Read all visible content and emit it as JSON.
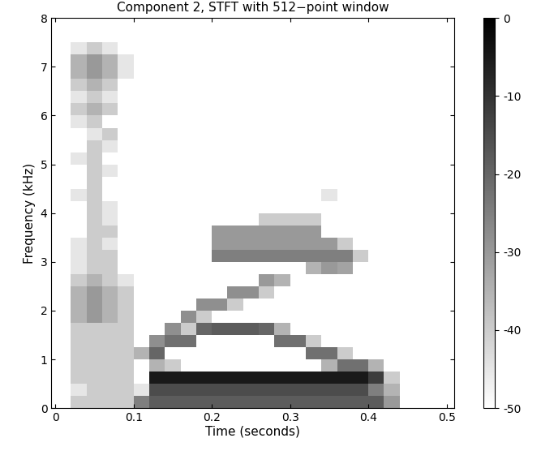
{
  "chart_data": {
    "type": "heatmap",
    "title": "Component 2, STFT with 512−point window",
    "x_label": "Time (seconds)",
    "y_label": "Frequency (kHz)",
    "xlim": [
      -0.005,
      0.51
    ],
    "ylim": [
      0,
      8
    ],
    "xticks": [
      0,
      0.1,
      0.2,
      0.3,
      0.4,
      0.5
    ],
    "yticks": [
      0,
      1,
      2,
      3,
      4,
      5,
      6,
      7,
      8
    ],
    "colorbar_range": [
      -50,
      0
    ],
    "colorbar_ticks": [
      0,
      -10,
      -20,
      -30,
      -40,
      -50
    ],
    "x": [
      0.01,
      0.03,
      0.05,
      0.07,
      0.09,
      0.11,
      0.13,
      0.15,
      0.17,
      0.19,
      0.21,
      0.23,
      0.25,
      0.27,
      0.29,
      0.31,
      0.33,
      0.35,
      0.37,
      0.39,
      0.41,
      0.43,
      0.45,
      0.47,
      0.49
    ],
    "y": [
      0.125,
      0.375,
      0.625,
      0.875,
      1.125,
      1.375,
      1.625,
      1.875,
      2.125,
      2.375,
      2.625,
      2.875,
      3.125,
      3.375,
      3.625,
      3.875,
      4.125,
      4.375,
      4.625,
      4.875,
      5.125,
      5.375,
      5.625,
      5.875,
      6.125,
      6.375,
      6.625,
      6.875,
      7.125,
      7.375,
      7.625,
      7.875
    ],
    "cells": [
      [
        -50,
        -40,
        -40,
        -40,
        -40,
        -25,
        -18,
        -18,
        -18,
        -18,
        -18,
        -18,
        -18,
        -18,
        -18,
        -18,
        -18,
        -18,
        -18,
        -18,
        -18,
        -30,
        -50,
        -50,
        -50
      ],
      [
        -50,
        -45,
        -40,
        -40,
        -40,
        -45,
        -15,
        -15,
        -15,
        -15,
        -15,
        -15,
        -15,
        -15,
        -15,
        -15,
        -15,
        -15,
        -15,
        -15,
        -25,
        -35,
        -50,
        -50,
        -50
      ],
      [
        -50,
        -40,
        -40,
        -40,
        -40,
        -50,
        -5,
        -5,
        -5,
        -5,
        -5,
        -5,
        -5,
        -5,
        -5,
        -5,
        -5,
        -5,
        -5,
        -5,
        -12,
        -40,
        -50,
        -50,
        -50
      ],
      [
        -50,
        -40,
        -40,
        -40,
        -40,
        -50,
        -35,
        -40,
        -50,
        -50,
        -50,
        -50,
        -50,
        -50,
        -50,
        -50,
        -50,
        -35,
        -22,
        -22,
        -35,
        -50,
        -50,
        -50,
        -50
      ],
      [
        -50,
        -40,
        -40,
        -40,
        -40,
        -35,
        -20,
        -50,
        -50,
        -50,
        -50,
        -50,
        -50,
        -50,
        -50,
        -50,
        -22,
        -22,
        -40,
        -50,
        -50,
        -50,
        -50,
        -50,
        -50
      ],
      [
        -50,
        -40,
        -40,
        -40,
        -40,
        -50,
        -28,
        -22,
        -22,
        -50,
        -50,
        -50,
        -50,
        -50,
        -22,
        -22,
        -40,
        -50,
        -50,
        -50,
        -50,
        -50,
        -50,
        -50,
        -50
      ],
      [
        -50,
        -40,
        -40,
        -40,
        -40,
        -50,
        -50,
        -28,
        -40,
        -20,
        -18,
        -18,
        -18,
        -20,
        -35,
        -50,
        -50,
        -50,
        -50,
        -50,
        -50,
        -50,
        -50,
        -50,
        -50
      ],
      [
        -50,
        -35,
        -30,
        -35,
        -40,
        -50,
        -50,
        -50,
        -28,
        -40,
        -50,
        -50,
        -50,
        -50,
        -50,
        -50,
        -50,
        -50,
        -50,
        -50,
        -50,
        -50,
        -50,
        -50,
        -50
      ],
      [
        -50,
        -35,
        -30,
        -35,
        -40,
        -50,
        -50,
        -50,
        -50,
        -28,
        -28,
        -40,
        -50,
        -50,
        -50,
        -50,
        -50,
        -50,
        -50,
        -50,
        -50,
        -50,
        -50,
        -50,
        -50
      ],
      [
        -50,
        -35,
        -30,
        -35,
        -40,
        -50,
        -50,
        -50,
        -50,
        -50,
        -50,
        -28,
        -28,
        -40,
        -50,
        -50,
        -50,
        -50,
        -50,
        -50,
        -50,
        -50,
        -50,
        -50,
        -50
      ],
      [
        -50,
        -40,
        -35,
        -40,
        -45,
        -50,
        -50,
        -50,
        -50,
        -50,
        -50,
        -50,
        -50,
        -30,
        -35,
        -50,
        -50,
        -50,
        -50,
        -50,
        -50,
        -50,
        -50,
        -50,
        -50
      ],
      [
        -50,
        -45,
        -40,
        -40,
        -50,
        -50,
        -50,
        -50,
        -50,
        -50,
        -50,
        -50,
        -50,
        -50,
        -50,
        -50,
        -35,
        -30,
        -32,
        -50,
        -50,
        -50,
        -50,
        -50,
        -50
      ],
      [
        -50,
        -45,
        -40,
        -40,
        -50,
        -50,
        -50,
        -50,
        -50,
        -50,
        -25,
        -25,
        -25,
        -25,
        -25,
        -25,
        -25,
        -25,
        -25,
        -40,
        -50,
        -50,
        -50,
        -50,
        -50
      ],
      [
        -50,
        -45,
        -40,
        -45,
        -50,
        -50,
        -50,
        -50,
        -50,
        -50,
        -30,
        -30,
        -30,
        -30,
        -30,
        -30,
        -30,
        -30,
        -40,
        -50,
        -50,
        -50,
        -50,
        -50,
        -50
      ],
      [
        -50,
        -50,
        -40,
        -40,
        -50,
        -50,
        -50,
        -50,
        -50,
        -50,
        -30,
        -30,
        -30,
        -30,
        -30,
        -30,
        -30,
        -50,
        -50,
        -50,
        -50,
        -50,
        -50,
        -50,
        -50
      ],
      [
        -50,
        -50,
        -40,
        -45,
        -50,
        -50,
        -50,
        -50,
        -50,
        -50,
        -50,
        -50,
        -50,
        -40,
        -40,
        -40,
        -40,
        -50,
        -50,
        -50,
        -50,
        -50,
        -50,
        -50,
        -50
      ],
      [
        -50,
        -50,
        -40,
        -45,
        -50,
        -50,
        -50,
        -50,
        -50,
        -50,
        -50,
        -50,
        -50,
        -50,
        -50,
        -50,
        -50,
        -50,
        -50,
        -50,
        -50,
        -50,
        -50,
        -50,
        -50
      ],
      [
        -50,
        -45,
        -40,
        -50,
        -50,
        -50,
        -50,
        -50,
        -50,
        -50,
        -50,
        -50,
        -50,
        -50,
        -50,
        -50,
        -50,
        -45,
        -50,
        -50,
        -50,
        -50,
        -50,
        -50,
        -50
      ],
      [
        -50,
        -50,
        -40,
        -50,
        -50,
        -50,
        -50,
        -50,
        -50,
        -50,
        -50,
        -50,
        -50,
        -50,
        -50,
        -50,
        -50,
        -50,
        -50,
        -50,
        -50,
        -50,
        -50,
        -50,
        -50
      ],
      [
        -50,
        -50,
        -40,
        -45,
        -50,
        -50,
        -50,
        -50,
        -50,
        -50,
        -50,
        -50,
        -50,
        -50,
        -50,
        -50,
        -50,
        -50,
        -50,
        -50,
        -50,
        -50,
        -50,
        -50,
        -50
      ],
      [
        -50,
        -45,
        -40,
        -50,
        -50,
        -50,
        -50,
        -50,
        -50,
        -50,
        -50,
        -50,
        -50,
        -50,
        -50,
        -50,
        -50,
        -50,
        -50,
        -50,
        -50,
        -50,
        -50,
        -50,
        -50
      ],
      [
        -50,
        -50,
        -40,
        -45,
        -50,
        -50,
        -50,
        -50,
        -50,
        -50,
        -50,
        -50,
        -50,
        -50,
        -50,
        -50,
        -50,
        -50,
        -50,
        -50,
        -50,
        -50,
        -50,
        -50,
        -50
      ],
      [
        -50,
        -50,
        -45,
        -40,
        -50,
        -50,
        -50,
        -50,
        -50,
        -50,
        -50,
        -50,
        -50,
        -50,
        -50,
        -50,
        -50,
        -50,
        -50,
        -50,
        -50,
        -50,
        -50,
        -50,
        -50
      ],
      [
        -50,
        -45,
        -40,
        -50,
        -50,
        -50,
        -50,
        -50,
        -50,
        -50,
        -50,
        -50,
        -50,
        -50,
        -50,
        -50,
        -50,
        -50,
        -50,
        -50,
        -50,
        -50,
        -50,
        -50,
        -50
      ],
      [
        -50,
        -40,
        -35,
        -40,
        -50,
        -50,
        -50,
        -50,
        -50,
        -50,
        -50,
        -50,
        -50,
        -50,
        -50,
        -50,
        -50,
        -50,
        -50,
        -50,
        -50,
        -50,
        -50,
        -50,
        -50
      ],
      [
        -50,
        -45,
        -40,
        -45,
        -50,
        -50,
        -50,
        -50,
        -50,
        -50,
        -50,
        -50,
        -50,
        -50,
        -50,
        -50,
        -50,
        -50,
        -50,
        -50,
        -50,
        -50,
        -50,
        -50,
        -50
      ],
      [
        -50,
        -40,
        -35,
        -40,
        -50,
        -50,
        -50,
        -50,
        -50,
        -50,
        -50,
        -50,
        -50,
        -50,
        -50,
        -50,
        -50,
        -50,
        -50,
        -50,
        -50,
        -50,
        -50,
        -50,
        -50
      ],
      [
        -50,
        -35,
        -30,
        -35,
        -45,
        -50,
        -50,
        -50,
        -50,
        -50,
        -50,
        -50,
        -50,
        -50,
        -50,
        -50,
        -50,
        -50,
        -50,
        -50,
        -50,
        -50,
        -50,
        -50,
        -50
      ],
      [
        -50,
        -35,
        -30,
        -35,
        -45,
        -50,
        -50,
        -50,
        -50,
        -50,
        -50,
        -50,
        -50,
        -50,
        -50,
        -50,
        -50,
        -50,
        -50,
        -50,
        -50,
        -50,
        -50,
        -50,
        -50
      ],
      [
        -50,
        -45,
        -40,
        -45,
        -50,
        -50,
        -50,
        -50,
        -50,
        -50,
        -50,
        -50,
        -50,
        -50,
        -50,
        -50,
        -50,
        -50,
        -50,
        -50,
        -50,
        -50,
        -50,
        -50,
        -50
      ],
      [
        -50,
        -50,
        -50,
        -50,
        -50,
        -50,
        -50,
        -50,
        -50,
        -50,
        -50,
        -50,
        -50,
        -50,
        -50,
        -50,
        -50,
        -50,
        -50,
        -50,
        -50,
        -50,
        -50,
        -50,
        -50
      ],
      [
        -50,
        -50,
        -50,
        -50,
        -50,
        -50,
        -50,
        -50,
        -50,
        -50,
        -50,
        -50,
        -50,
        -50,
        -50,
        -50,
        -50,
        -50,
        -50,
        -50,
        -50,
        -50,
        -50,
        -50,
        -50
      ]
    ]
  }
}
